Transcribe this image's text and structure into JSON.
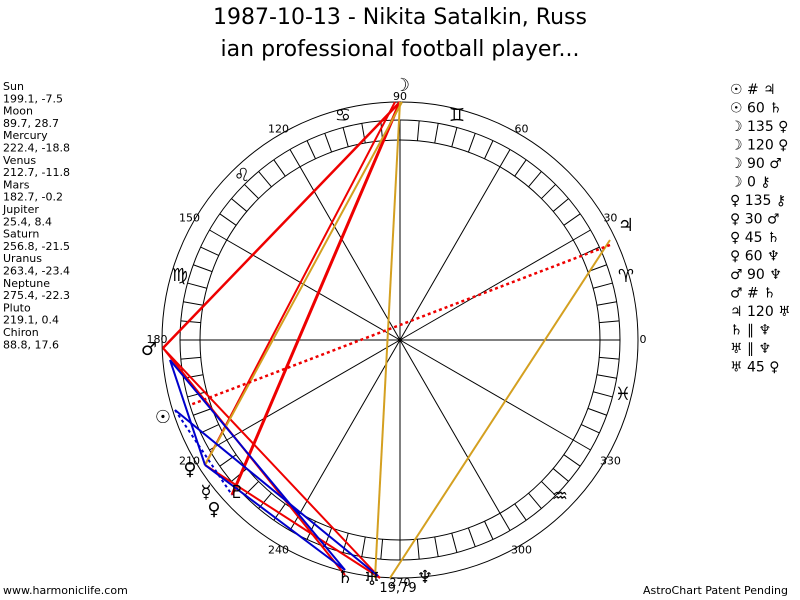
{
  "header": {
    "title_line1": "1987-10-13 - Nikita Satalkin, Russ",
    "title_line2": "ian professional football player..."
  },
  "planets": [
    {
      "name": "Sun",
      "position": "199.1, -7.5"
    },
    {
      "name": "Moon",
      "position": "89.7, 28.7"
    },
    {
      "name": "Mercury",
      "position": "222.4, -18.8"
    },
    {
      "name": "Venus",
      "position": "212.7, -11.8"
    },
    {
      "name": "Mars",
      "position": "182.7, -0.2"
    },
    {
      "name": "Jupiter",
      "position": "25.4, 8.4"
    },
    {
      "name": "Saturn",
      "position": "256.8, -21.5"
    },
    {
      "name": "Uranus",
      "position": "263.4, -23.4"
    },
    {
      "name": "Neptune",
      "position": "275.4, -22.3"
    },
    {
      "name": "Pluto",
      "position": "219.1, 0.4"
    },
    {
      "name": "Chiron",
      "position": "88.8, 17.6"
    }
  ],
  "ring_labels": [
    0,
    30,
    60,
    90,
    120,
    150,
    180,
    210,
    240,
    270,
    300,
    330
  ],
  "signs": [
    "♈",
    "♊",
    "♋",
    "♌",
    "♍",
    "♓",
    "♒"
  ],
  "planet_glyphs": [
    "☽",
    "♃",
    "♂",
    "☉",
    "♀",
    "☿",
    "♇",
    "♄",
    "♅",
    "♆",
    "♀"
  ],
  "bottom_label": "19,79",
  "aspects": [
    "☉ # ♃",
    "☉ 60 ♄",
    "☽ 135 ♀",
    "☽ 120 ♀",
    "☽ 90 ♂",
    "☽ 0 ⚷",
    "♀ 135 ⚷",
    "♀ 30 ♂",
    "♀ 45 ♄",
    "♀ 60 ♆",
    "♂ 90 ♆",
    "♂ # ♄",
    "♃ 120 ♅",
    "♄ ∥ ♆",
    "♅ ∥ ♆",
    "♅ 45 ♀"
  ],
  "footer": {
    "left": "www.harmoniclife.com",
    "right": "AstroChart Patent Pending"
  }
}
